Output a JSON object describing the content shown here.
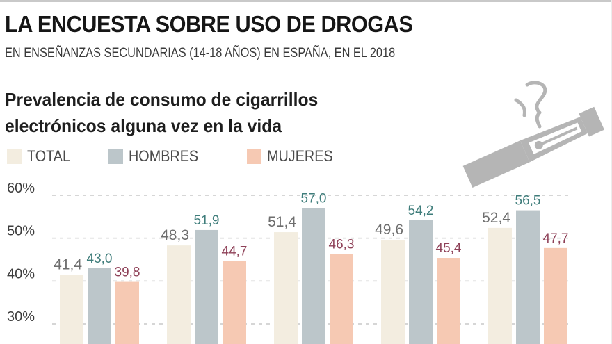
{
  "header": {
    "title": "LA ENCUESTA SOBRE USO DE DROGAS",
    "subtitle": "EN ENSEÑANZAS SECUNDARIAS (14-18 AÑOS) EN ESPAÑA, EN EL 2018"
  },
  "icon": "e-cigarette-icon",
  "chart_data": {
    "type": "bar",
    "title": "Prevalencia de consumo de cigarrillos electrónicos alguna vez en la vida",
    "title_lines": [
      "Prevalencia de consumo de cigarrillos",
      "electrónicos alguna vez en la vida"
    ],
    "xlabel": "",
    "ylabel": "",
    "categories": [
      "",
      "",
      "",
      "",
      ""
    ],
    "series": [
      {
        "name": "TOTAL",
        "color": "#f3ede0",
        "label_color": "#6e6e6e",
        "values": [
          41.4,
          48.3,
          51.4,
          49.6,
          52.4
        ],
        "labels": [
          "41,4",
          "48,3",
          "51,4",
          "49,6",
          "52,4"
        ]
      },
      {
        "name": "HOMBRES",
        "color": "#bcc6ca",
        "label_color": "#3f7d7b",
        "values": [
          43.0,
          51.9,
          57.0,
          54.2,
          56.5
        ],
        "labels": [
          "43,0",
          "51,9",
          "57,0",
          "54,2",
          "56,5"
        ]
      },
      {
        "name": "MUJERES",
        "color": "#f6c9b3",
        "label_color": "#8e4057",
        "values": [
          39.8,
          44.7,
          46.3,
          45.4,
          47.7
        ],
        "labels": [
          "39,8",
          "44,7",
          "46,3",
          "45,4",
          "47,7"
        ]
      }
    ],
    "yticks": [
      30,
      40,
      50,
      60
    ],
    "ytick_labels": [
      "30%",
      "40%",
      "50%",
      "60%"
    ],
    "ylim_visible": [
      27,
      62
    ],
    "grid": true,
    "grid_style": "dashed",
    "legend_position": "top-left"
  }
}
